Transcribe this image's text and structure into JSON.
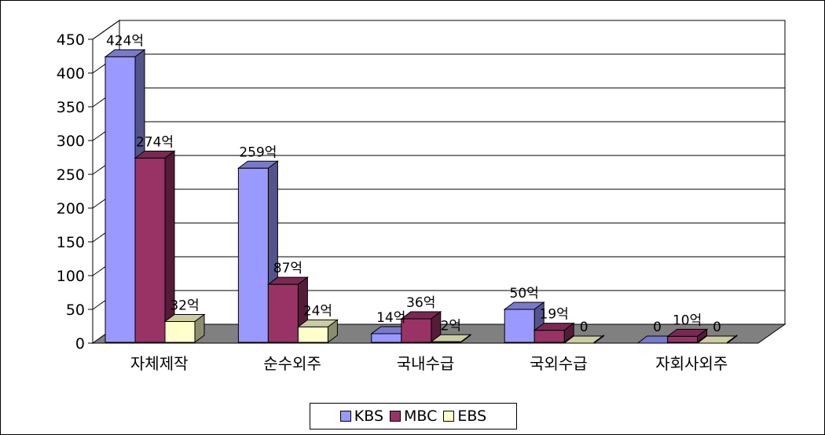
{
  "chart_data": {
    "type": "bar",
    "categories": [
      "자체제작",
      "순수외주",
      "국내수급",
      "국외수급",
      "자회사외주"
    ],
    "series": [
      {
        "name": "KBS",
        "values": [
          424,
          259,
          14,
          50,
          0
        ],
        "labels": [
          "424억",
          "259억",
          "14억",
          "50억",
          "0"
        ],
        "color": "#9999FF"
      },
      {
        "name": "MBC",
        "values": [
          274,
          87,
          36,
          19,
          10
        ],
        "labels": [
          "274억",
          "87억",
          "36억",
          "19억",
          "10억"
        ],
        "color": "#993366"
      },
      {
        "name": "EBS",
        "values": [
          32,
          24,
          2,
          0,
          0
        ],
        "labels": [
          "32억",
          "24억",
          "2억",
          "0",
          "0"
        ],
        "color": "#FFFFCC"
      }
    ],
    "ylim": [
      0,
      450
    ],
    "yticks": [
      "0",
      "50",
      "100",
      "150",
      "200",
      "250",
      "300",
      "350",
      "400",
      "450"
    ],
    "grid": true,
    "legend": "bottom",
    "title": "",
    "xlabel": "",
    "ylabel": "",
    "floor_color": "#808080",
    "wall_color": "#ffffff"
  }
}
